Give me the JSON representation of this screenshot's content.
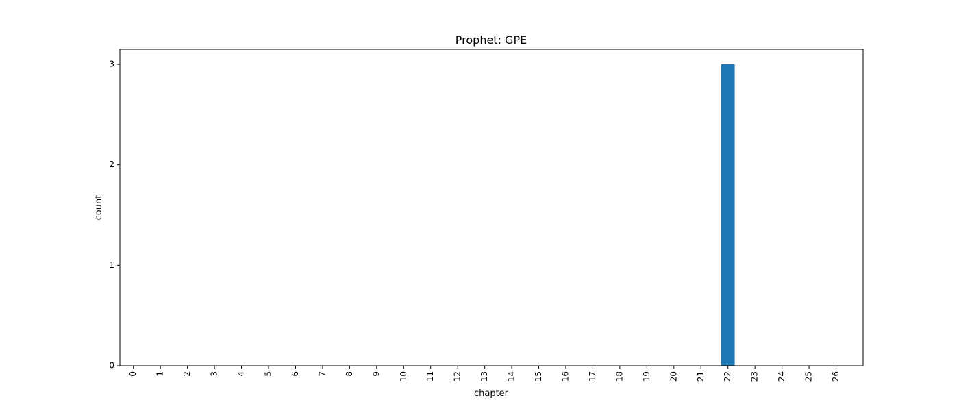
{
  "chart_data": {
    "type": "bar",
    "title": "Prophet: GPE",
    "xlabel": "chapter",
    "ylabel": "count",
    "categories": [
      "0",
      "1",
      "2",
      "3",
      "4",
      "5",
      "6",
      "7",
      "8",
      "9",
      "10",
      "11",
      "12",
      "13",
      "14",
      "15",
      "16",
      "17",
      "18",
      "19",
      "20",
      "21",
      "22",
      "23",
      "24",
      "25",
      "26"
    ],
    "values": [
      0,
      0,
      0,
      0,
      0,
      0,
      0,
      0,
      0,
      0,
      0,
      0,
      0,
      0,
      0,
      0,
      0,
      0,
      0,
      0,
      0,
      0,
      3,
      0,
      0,
      0,
      0
    ],
    "ylim": [
      0,
      3.15
    ],
    "yticks": [
      0,
      1,
      2,
      3
    ],
    "grid": false,
    "bar_color": "#1f77b4"
  }
}
